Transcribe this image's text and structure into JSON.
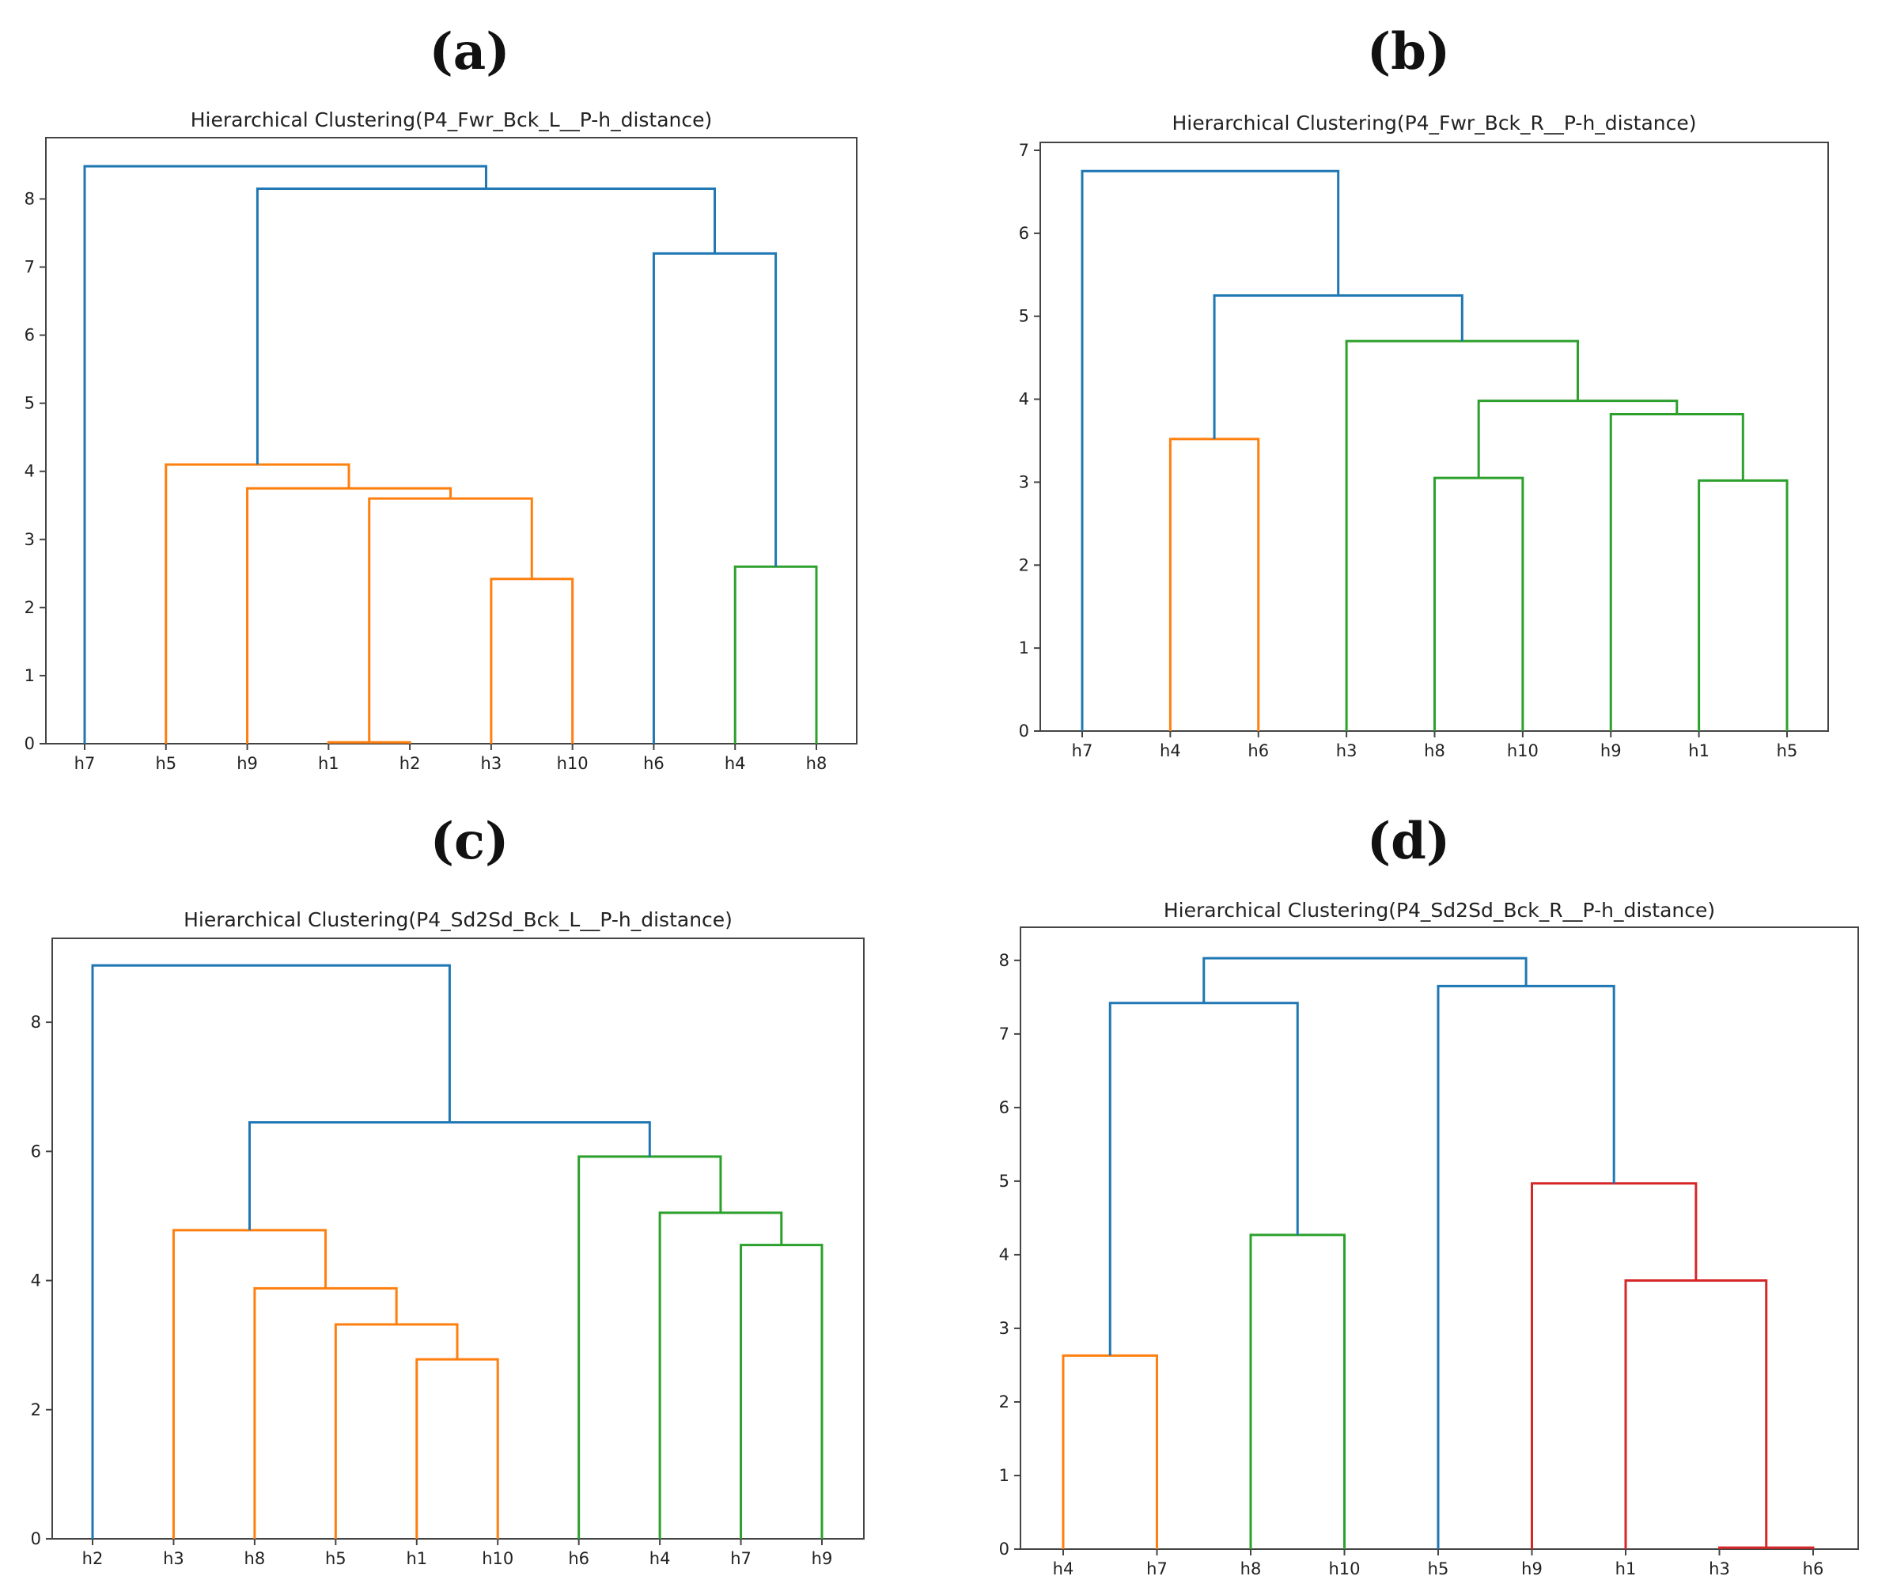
{
  "colors": {
    "blue": "#1f77b4",
    "orange": "#ff7f0e",
    "green": "#2ca02c",
    "red": "#d62728",
    "axis": "#444444"
  },
  "chart_data": [
    {
      "panel": "(a)",
      "type": "dendrogram",
      "title": "Hierarchical Clustering(P4_Fwr_Bck_L__P-h_distance)",
      "xlabel": "",
      "ylabel": "",
      "leaves": [
        "h7",
        "h5",
        "h9",
        "h1",
        "h2",
        "h3",
        "h10",
        "h6",
        "h4",
        "h8"
      ],
      "ylim": [
        0,
        8.9
      ],
      "yticks": [
        0,
        1,
        2,
        3,
        4,
        5,
        6,
        7,
        8
      ],
      "merges": [
        {
          "left": "h1",
          "right": "h2",
          "height": 0.02,
          "color": "orange"
        },
        {
          "left": "h3",
          "right": "h10",
          "height": 2.42,
          "color": "orange"
        },
        {
          "left": 0,
          "right": 1,
          "height": 3.6,
          "color": "orange"
        },
        {
          "left": "h9",
          "right": 2,
          "height": 3.75,
          "color": "orange"
        },
        {
          "left": "h5",
          "right": 3,
          "height": 4.1,
          "color": "orange"
        },
        {
          "left": "h4",
          "right": "h8",
          "height": 2.6,
          "color": "green"
        },
        {
          "left": "h6",
          "right": 5,
          "height": 7.2,
          "color": "blue"
        },
        {
          "left": 4,
          "right": 6,
          "height": 8.15,
          "color": "blue"
        },
        {
          "left": "h7",
          "right": 7,
          "height": 8.48,
          "color": "blue"
        }
      ]
    },
    {
      "panel": "(b)",
      "type": "dendrogram",
      "title": "Hierarchical Clustering(P4_Fwr_Bck_R__P-h_distance)",
      "xlabel": "",
      "ylabel": "",
      "leaves": [
        "h7",
        "h4",
        "h6",
        "h3",
        "h8",
        "h10",
        "h9",
        "h1",
        "h5"
      ],
      "ylim": [
        0,
        7
      ],
      "yticks": [
        0,
        1,
        2,
        3,
        4,
        5,
        6,
        7
      ],
      "merges": [
        {
          "left": "h4",
          "right": "h6",
          "height": 3.52,
          "color": "orange"
        },
        {
          "left": "h8",
          "right": "h10",
          "height": 3.05,
          "color": "green"
        },
        {
          "left": "h1",
          "right": "h5",
          "height": 3.02,
          "color": "green"
        },
        {
          "left": "h9",
          "right": 2,
          "height": 3.82,
          "color": "green"
        },
        {
          "left": 1,
          "right": 3,
          "height": 3.98,
          "color": "green"
        },
        {
          "left": "h3",
          "right": 4,
          "height": 4.7,
          "color": "green"
        },
        {
          "left": 0,
          "right": 5,
          "height": 5.25,
          "color": "blue"
        },
        {
          "left": "h7",
          "right": 6,
          "height": 6.75,
          "color": "blue"
        }
      ]
    },
    {
      "panel": "(c)",
      "type": "dendrogram",
      "title": "Hierarchical Clustering(P4_Sd2Sd_Bck_L__P-h_distance)",
      "xlabel": "",
      "ylabel": "",
      "leaves": [
        "h2",
        "h3",
        "h8",
        "h5",
        "h1",
        "h10",
        "h6",
        "h4",
        "h7",
        "h9"
      ],
      "ylim": [
        0,
        9.3
      ],
      "yticks": [
        0,
        2,
        4,
        6,
        8
      ],
      "merges": [
        {
          "left": "h1",
          "right": "h10",
          "height": 2.78,
          "color": "orange"
        },
        {
          "left": "h5",
          "right": 0,
          "height": 3.32,
          "color": "orange"
        },
        {
          "left": "h8",
          "right": 1,
          "height": 3.88,
          "color": "orange"
        },
        {
          "left": "h3",
          "right": 2,
          "height": 4.78,
          "color": "orange"
        },
        {
          "left": "h7",
          "right": "h9",
          "height": 4.55,
          "color": "green"
        },
        {
          "left": "h4",
          "right": 4,
          "height": 5.05,
          "color": "green"
        },
        {
          "left": "h6",
          "right": 5,
          "height": 5.92,
          "color": "green"
        },
        {
          "left": 3,
          "right": 6,
          "height": 6.45,
          "color": "blue"
        },
        {
          "left": "h2",
          "right": 7,
          "height": 8.88,
          "color": "blue"
        }
      ]
    },
    {
      "panel": "(d)",
      "type": "dendrogram",
      "title": "Hierarchical Clustering(P4_Sd2Sd_Bck_R__P-h_distance)",
      "xlabel": "",
      "ylabel": "",
      "leaves": [
        "h4",
        "h7",
        "h8",
        "h10",
        "h5",
        "h9",
        "h1",
        "h3",
        "h6"
      ],
      "ylim": [
        0,
        8.45
      ],
      "yticks": [
        0,
        1,
        2,
        3,
        4,
        5,
        6,
        7,
        8
      ],
      "merges": [
        {
          "left": "h4",
          "right": "h7",
          "height": 2.63,
          "color": "orange"
        },
        {
          "left": "h8",
          "right": "h10",
          "height": 4.27,
          "color": "green"
        },
        {
          "left": 0,
          "right": 1,
          "height": 7.42,
          "color": "blue"
        },
        {
          "left": "h3",
          "right": "h6",
          "height": 0.02,
          "color": "red"
        },
        {
          "left": "h1",
          "right": 3,
          "height": 3.65,
          "color": "red"
        },
        {
          "left": "h9",
          "right": 4,
          "height": 4.97,
          "color": "red"
        },
        {
          "left": "h5",
          "right": 5,
          "height": 7.65,
          "color": "blue"
        },
        {
          "left": 2,
          "right": 6,
          "height": 8.03,
          "color": "blue"
        }
      ]
    }
  ]
}
